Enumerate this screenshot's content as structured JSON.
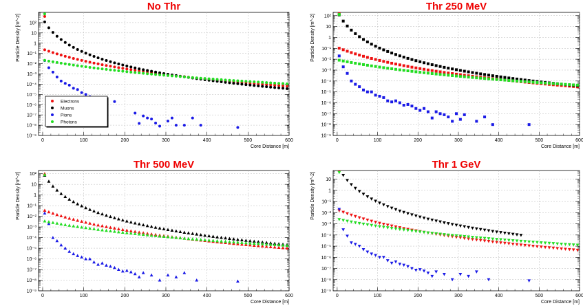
{
  "chart_data": [
    {
      "type": "scatter",
      "title": "No Thr",
      "xlabel": "Core Distance [m]",
      "ylabel": "Particle Density [m^-2]",
      "xlim": [
        -10,
        600
      ],
      "ylim": [
        1e-09,
        1000
      ],
      "yscale": "log",
      "x_ticks": [
        "0",
        "100",
        "200",
        "300",
        "400",
        "500",
        "600"
      ],
      "y_ticks": [
        "10⁻⁹",
        "10⁻⁸",
        "10⁻⁷",
        "10⁻⁶",
        "10⁻⁵",
        "10⁻⁴",
        "10⁻³",
        "10⁻²",
        "10⁻¹",
        "1",
        "10",
        "10²"
      ],
      "grid": true,
      "marker": "circle",
      "legend": {
        "position": "bottom-left",
        "entries": [
          "Electrons",
          "Muons",
          "Pions",
          "Photons"
        ]
      },
      "series": [
        {
          "name": "Electrons",
          "color": "#ee1111",
          "model": {
            "a": 1.5,
            "b": 1.3,
            "c": 2.2
          },
          "x_range": [
            5,
            595
          ],
          "step": 10,
          "extra": [
            [
              5,
              400
            ]
          ]
        },
        {
          "name": "Muons",
          "color": "#000000",
          "model": {
            "a": 0.3,
            "b": 1.3,
            "c": 0.5
          },
          "x_range": [
            5,
            595
          ],
          "step": 10
        },
        {
          "name": "Pions",
          "color": "#1a1ae6",
          "points": [
            [
              5,
              0.02
            ],
            [
              15,
              0.004
            ],
            [
              25,
              0.0015
            ],
            [
              35,
              0.0005
            ],
            [
              45,
              0.0002
            ],
            [
              55,
              0.00012
            ],
            [
              65,
              8e-05
            ],
            [
              75,
              4e-05
            ],
            [
              85,
              3e-05
            ],
            [
              95,
              1.5e-05
            ],
            [
              105,
              1e-05
            ],
            [
              115,
              6e-06
            ],
            [
              125,
              4e-06
            ],
            [
              145,
              2e-06
            ],
            [
              175,
              2e-06
            ],
            [
              225,
              1.5e-07
            ],
            [
              235,
              1.5e-08
            ],
            [
              245,
              8e-08
            ],
            [
              255,
              5e-08
            ],
            [
              265,
              4e-08
            ],
            [
              275,
              1.6e-08
            ],
            [
              285,
              8e-09
            ],
            [
              305,
              2.5e-08
            ],
            [
              315,
              5e-08
            ],
            [
              325,
              1e-08
            ],
            [
              345,
              1e-08
            ],
            [
              365,
              5e-08
            ],
            [
              385,
              1e-08
            ],
            [
              475,
              6e-09
            ]
          ]
        },
        {
          "name": "Photons",
          "color": "#22dd22",
          "model": {
            "a": 2.5,
            "b": 1.1,
            "c": 1.3
          },
          "x_range": [
            5,
            595
          ],
          "step": 10,
          "extra": [
            [
              5,
              700
            ]
          ]
        }
      ]
    },
    {
      "type": "scatter",
      "title": "Thr 250 MeV",
      "xlabel": "Core Distance [m]",
      "ylabel": "Particle Density [m^-2]",
      "xlim": [
        -10,
        600
      ],
      "ylim": [
        1e-09,
        200
      ],
      "yscale": "log",
      "x_ticks": [
        "0",
        "100",
        "200",
        "300",
        "400",
        "500",
        "600"
      ],
      "y_ticks": [
        "10⁻⁹",
        "10⁻⁸",
        "10⁻⁷",
        "10⁻⁶",
        "10⁻⁵",
        "10⁻⁴",
        "10⁻³",
        "10⁻²",
        "10⁻¹",
        "1",
        "10",
        "10²"
      ],
      "grid": true,
      "marker": "square",
      "series": [
        {
          "name": "Electrons",
          "color": "#ee1111",
          "model": {
            "a": 1.5,
            "b": 1.3,
            "c": 1.0
          },
          "x_range": [
            5,
            595
          ],
          "step": 10,
          "extra": [
            [
              5,
              150
            ]
          ]
        },
        {
          "name": "Muons",
          "color": "#000000",
          "model": {
            "a": 0.3,
            "b": 1.3,
            "c": 0.5
          },
          "x_range": [
            5,
            595
          ],
          "step": 10
        },
        {
          "name": "Pions",
          "color": "#1a1ae6",
          "points": [
            [
              5,
              0.02
            ],
            [
              15,
              0.002
            ],
            [
              25,
              0.0005
            ],
            [
              35,
              0.0001
            ],
            [
              45,
              5e-05
            ],
            [
              55,
              3e-05
            ],
            [
              65,
              1.5e-05
            ],
            [
              75,
              1e-05
            ],
            [
              85,
              1e-05
            ],
            [
              95,
              5e-06
            ],
            [
              105,
              4e-06
            ],
            [
              115,
              3e-06
            ],
            [
              125,
              1.5e-06
            ],
            [
              135,
              1.2e-06
            ],
            [
              145,
              1.5e-06
            ],
            [
              155,
              1e-06
            ],
            [
              165,
              6e-07
            ],
            [
              175,
              7e-07
            ],
            [
              185,
              5e-07
            ],
            [
              195,
              3e-07
            ],
            [
              205,
              2e-07
            ],
            [
              215,
              3e-07
            ],
            [
              225,
              1.5e-07
            ],
            [
              235,
              4e-08
            ],
            [
              245,
              1.5e-07
            ],
            [
              255,
              1e-07
            ],
            [
              265,
              8e-08
            ],
            [
              275,
              5e-08
            ],
            [
              285,
              2e-08
            ],
            [
              295,
              1e-07
            ],
            [
              305,
              3e-08
            ],
            [
              315,
              8e-08
            ],
            [
              345,
              2e-08
            ],
            [
              365,
              5e-08
            ],
            [
              385,
              1e-08
            ],
            [
              475,
              1e-08
            ]
          ]
        },
        {
          "name": "Photons",
          "color": "#22dd22",
          "model": {
            "a": 2.5,
            "b": 1.1,
            "c": 0.5
          },
          "x_range": [
            5,
            595
          ],
          "step": 10,
          "extra": [
            [
              5,
              130
            ]
          ]
        }
      ]
    },
    {
      "type": "scatter",
      "title": "Thr 500 MeV",
      "xlabel": "Core Distance [m]",
      "ylabel": "Particle Density [m^-2]",
      "xlim": [
        -10,
        600
      ],
      "ylim": [
        1e-09,
        200
      ],
      "yscale": "log",
      "x_ticks": [
        "0",
        "100",
        "200",
        "300",
        "400",
        "500",
        "600"
      ],
      "y_ticks": [
        "10⁻⁹",
        "10⁻⁸",
        "10⁻⁷",
        "10⁻⁶",
        "10⁻⁵",
        "10⁻⁴",
        "10⁻³",
        "10⁻²",
        "10⁻¹",
        "1",
        "10",
        "10²"
      ],
      "grid": true,
      "marker": "triangle-up",
      "series": [
        {
          "name": "Electrons",
          "color": "#ee1111",
          "model": {
            "a": 1.5,
            "b": 1.3,
            "c": 0.35
          },
          "x_range": [
            5,
            595
          ],
          "step": 10,
          "extra": [
            [
              5,
              100
            ]
          ]
        },
        {
          "name": "Muons",
          "color": "#000000",
          "model": {
            "a": 0.3,
            "b": 1.3,
            "c": 0.3
          },
          "x_range": [
            5,
            595
          ],
          "step": 10
        },
        {
          "name": "Pions",
          "color": "#1a1ae6",
          "points": [
            [
              5,
              0.02
            ],
            [
              15,
              0.002
            ],
            [
              25,
              0.0001
            ],
            [
              35,
              5e-05
            ],
            [
              45,
              2e-05
            ],
            [
              55,
              1e-05
            ],
            [
              65,
              5e-06
            ],
            [
              75,
              3e-06
            ],
            [
              85,
              2e-06
            ],
            [
              95,
              1.5e-06
            ],
            [
              105,
              1e-06
            ],
            [
              115,
              1e-06
            ],
            [
              125,
              5e-07
            ],
            [
              135,
              3e-07
            ],
            [
              145,
              4e-07
            ],
            [
              155,
              2.5e-07
            ],
            [
              165,
              2e-07
            ],
            [
              175,
              1.5e-07
            ],
            [
              185,
              1e-07
            ],
            [
              195,
              7e-08
            ],
            [
              205,
              8e-08
            ],
            [
              215,
              6e-08
            ],
            [
              225,
              4e-08
            ],
            [
              235,
              2e-08
            ],
            [
              245,
              5e-08
            ],
            [
              265,
              3e-08
            ],
            [
              285,
              1e-08
            ],
            [
              305,
              3e-08
            ],
            [
              325,
              2e-08
            ],
            [
              345,
              5e-08
            ],
            [
              375,
              1e-08
            ],
            [
              475,
              8e-09
            ]
          ]
        },
        {
          "name": "Photons",
          "color": "#22dd22",
          "model": {
            "a": 2.5,
            "b": 1.1,
            "c": 0.22
          },
          "x_range": [
            5,
            595
          ],
          "step": 10,
          "extra": [
            [
              5,
              80
            ]
          ]
        }
      ]
    },
    {
      "type": "scatter",
      "title": "Thr 1 GeV",
      "xlabel": "Core Distance [m]",
      "ylabel": "Particle Density [m^-2]",
      "xlim": [
        -10,
        600
      ],
      "ylim": [
        1e-09,
        60
      ],
      "yscale": "log",
      "x_ticks": [
        "0",
        "100",
        "200",
        "300",
        "400",
        "500",
        "600"
      ],
      "y_ticks": [
        "10⁻⁹",
        "10⁻⁸",
        "10⁻⁷",
        "10⁻⁶",
        "10⁻⁵",
        "10⁻⁴",
        "10⁻³",
        "10⁻²",
        "10⁻¹",
        "1",
        "10"
      ],
      "grid": true,
      "marker": "triangle-down",
      "series": [
        {
          "name": "Electrons",
          "color": "#ee1111",
          "model": {
            "a": 1.5,
            "b": 1.3,
            "c": 0.15
          },
          "x_range": [
            5,
            595
          ],
          "step": 10,
          "extra": [
            [
              5,
              50
            ]
          ]
        },
        {
          "name": "Muons",
          "color": "#000000",
          "model": {
            "a": 0.3,
            "b": 1.3,
            "c": 0.35
          },
          "x_range": [
            5,
            455
          ],
          "step": 10
        },
        {
          "name": "Pions",
          "color": "#1a1ae6",
          "points": [
            [
              5,
              0.02
            ],
            [
              15,
              0.0003
            ],
            [
              25,
              8e-05
            ],
            [
              35,
              2e-05
            ],
            [
              45,
              1.5e-05
            ],
            [
              55,
              1e-05
            ],
            [
              65,
              5e-06
            ],
            [
              75,
              3e-06
            ],
            [
              85,
              2e-06
            ],
            [
              95,
              1.5e-06
            ],
            [
              105,
              1e-06
            ],
            [
              115,
              1e-06
            ],
            [
              125,
              5e-07
            ],
            [
              135,
              3e-07
            ],
            [
              145,
              4e-07
            ],
            [
              155,
              2.5e-07
            ],
            [
              165,
              2e-07
            ],
            [
              175,
              1.5e-07
            ],
            [
              185,
              1e-07
            ],
            [
              195,
              7e-08
            ],
            [
              205,
              8e-08
            ],
            [
              215,
              6e-08
            ],
            [
              225,
              4e-08
            ],
            [
              235,
              2e-08
            ],
            [
              245,
              5e-08
            ],
            [
              265,
              3e-08
            ],
            [
              285,
              1e-08
            ],
            [
              305,
              3e-08
            ],
            [
              325,
              2e-08
            ],
            [
              345,
              5e-08
            ],
            [
              375,
              1e-08
            ],
            [
              475,
              8e-09
            ]
          ]
        },
        {
          "name": "Photons",
          "color": "#22dd22",
          "model": {
            "a": 2.5,
            "b": 1.1,
            "c": 0.15
          },
          "x_range": [
            5,
            595
          ],
          "step": 10,
          "extra": [
            [
              5,
              40
            ]
          ]
        }
      ]
    }
  ]
}
